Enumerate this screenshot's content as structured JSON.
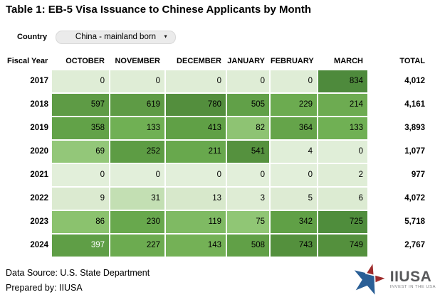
{
  "filter": {
    "label": "Country",
    "value": "China - mainland born"
  },
  "footer": {
    "source": "Data Source: U.S. State Department",
    "prepared": "Prepared by: IIUSA"
  },
  "logo": {
    "name": "IIUSA",
    "tagline": "INVEST IN THE USA",
    "star_blue": "#2a5f96",
    "star_red": "#9e2b2b"
  },
  "chart_data": {
    "type": "heatmap",
    "title": "Table 1: EB-5 Visa Issuance to Chinese Applicants by Month",
    "row_header": "Fiscal Year",
    "columns": [
      "OCTOBER",
      "NOVEMBER",
      "DECEMBER",
      "JANUARY",
      "FEBRUARY",
      "MARCH"
    ],
    "total_label": "TOTAL",
    "rows": [
      {
        "year": "2017",
        "values": [
          0,
          0,
          0,
          0,
          0,
          834
        ],
        "total": "4,012"
      },
      {
        "year": "2018",
        "values": [
          597,
          619,
          780,
          505,
          229,
          214
        ],
        "total": "4,161"
      },
      {
        "year": "2019",
        "values": [
          358,
          133,
          413,
          82,
          364,
          133
        ],
        "total": "3,893"
      },
      {
        "year": "2020",
        "values": [
          69,
          252,
          211,
          541,
          4,
          0
        ],
        "total": "1,077"
      },
      {
        "year": "2021",
        "values": [
          0,
          0,
          0,
          0,
          0,
          2
        ],
        "total": "977"
      },
      {
        "year": "2022",
        "values": [
          9,
          31,
          13,
          3,
          5,
          6
        ],
        "total": "4,072"
      },
      {
        "year": "2023",
        "values": [
          86,
          230,
          119,
          75,
          342,
          725
        ],
        "total": "5,718"
      },
      {
        "year": "2024",
        "values": [
          397,
          227,
          143,
          508,
          743,
          749
        ],
        "total": "2,767"
      }
    ],
    "cell_colors": [
      [
        "#dfedd6",
        "#dfedd6",
        "#dfedd6",
        "#dfedd6",
        "#dfedd6",
        "#4e8a3c"
      ],
      [
        "#5e9b45",
        "#5e9b45",
        "#538e3d",
        "#61a048",
        "#6cab50",
        "#6dab51"
      ],
      [
        "#62a248",
        "#70b054",
        "#60a046",
        "#8ec373",
        "#65a44a",
        "#70b054"
      ],
      [
        "#93c779",
        "#5d9c44",
        "#68a84d",
        "#55913e",
        "#e0eed8",
        "#e0eed8"
      ],
      [
        "#e2efda",
        "#e2efda",
        "#e2efda",
        "#e2efda",
        "#e2efda",
        "#dfedd6"
      ],
      [
        "#dbead0",
        "#c3dfb3",
        "#d7e8cb",
        "#deecd4",
        "#ddebd3",
        "#dcebd2"
      ],
      [
        "#8bc26e",
        "#68a84d",
        "#7fba63",
        "#90c675",
        "#60a046",
        "#4f8d3c"
      ],
      [
        "#5f9e46",
        "#6cab50",
        "#74b156",
        "#61a047",
        "#54903d",
        "#54903d"
      ]
    ],
    "white_text_cells": [
      [
        7,
        0
      ]
    ],
    "color_scale": {
      "min": "#e2efda",
      "max": "#4e8a3c"
    },
    "legend_position": "none",
    "grid": false
  }
}
